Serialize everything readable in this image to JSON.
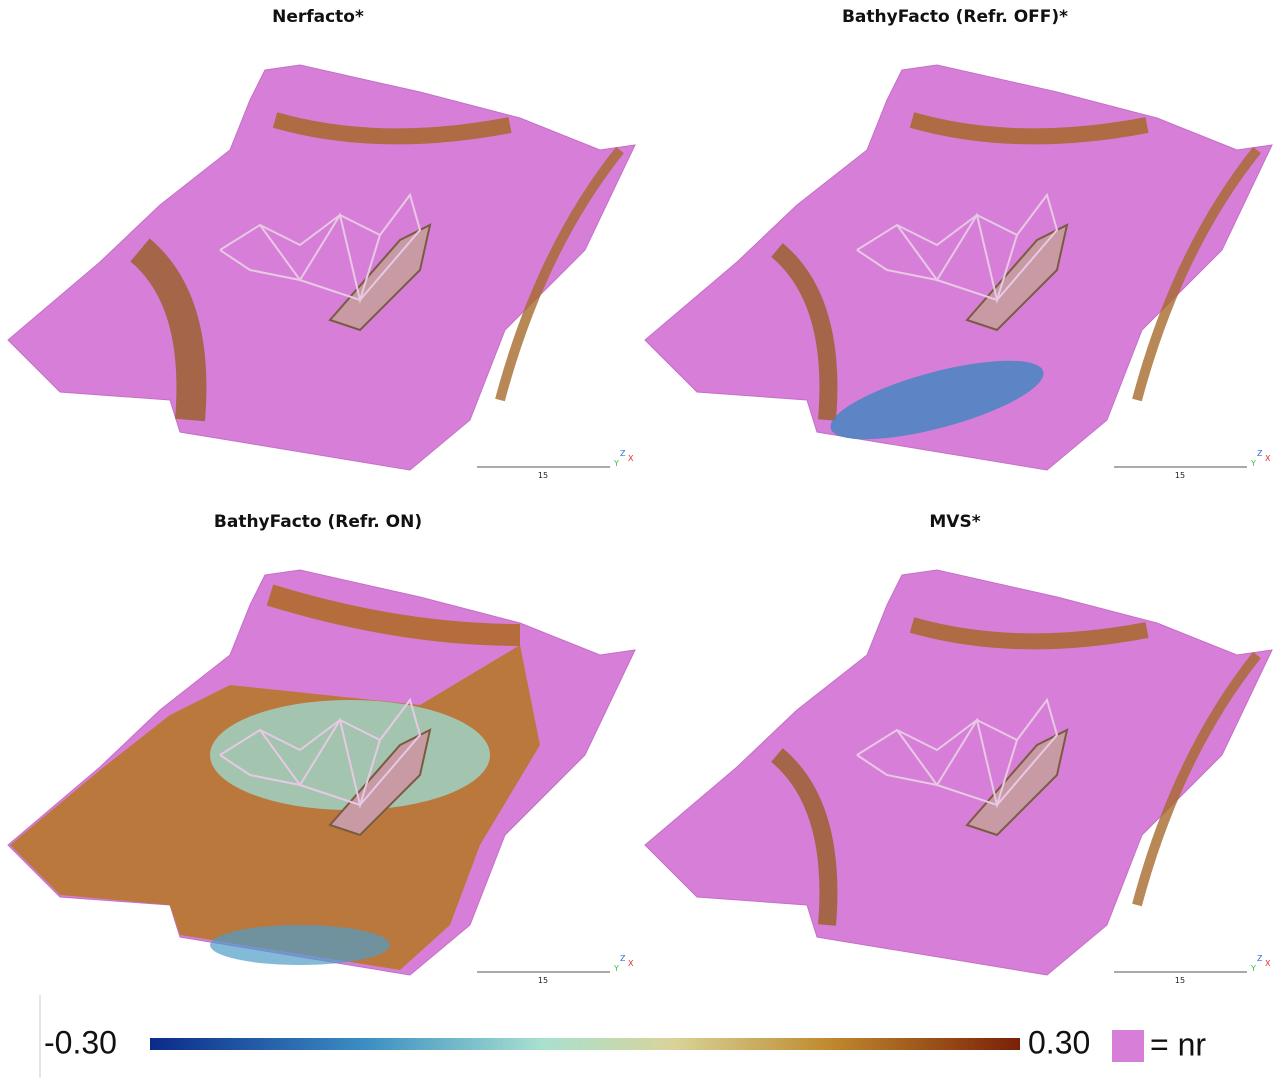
{
  "panels": [
    {
      "title": "Nerfacto*",
      "scale_label": "15",
      "axes": [
        "Y",
        "Z",
        "X"
      ]
    },
    {
      "title": "BathyFacto (Refr. OFF)*",
      "scale_label": "15",
      "axes": [
        "Y",
        "Z",
        "X"
      ]
    },
    {
      "title": "BathyFacto (Refr. ON)",
      "scale_label": "15",
      "axes": [
        "Y",
        "Z",
        "X"
      ]
    },
    {
      "title": "MVS*",
      "scale_label": "15",
      "axes": [
        "Y",
        "Z",
        "X"
      ]
    }
  ],
  "colorbar": {
    "min_label": "-0.30",
    "max_label": "0.30",
    "legend": "= nr"
  }
}
